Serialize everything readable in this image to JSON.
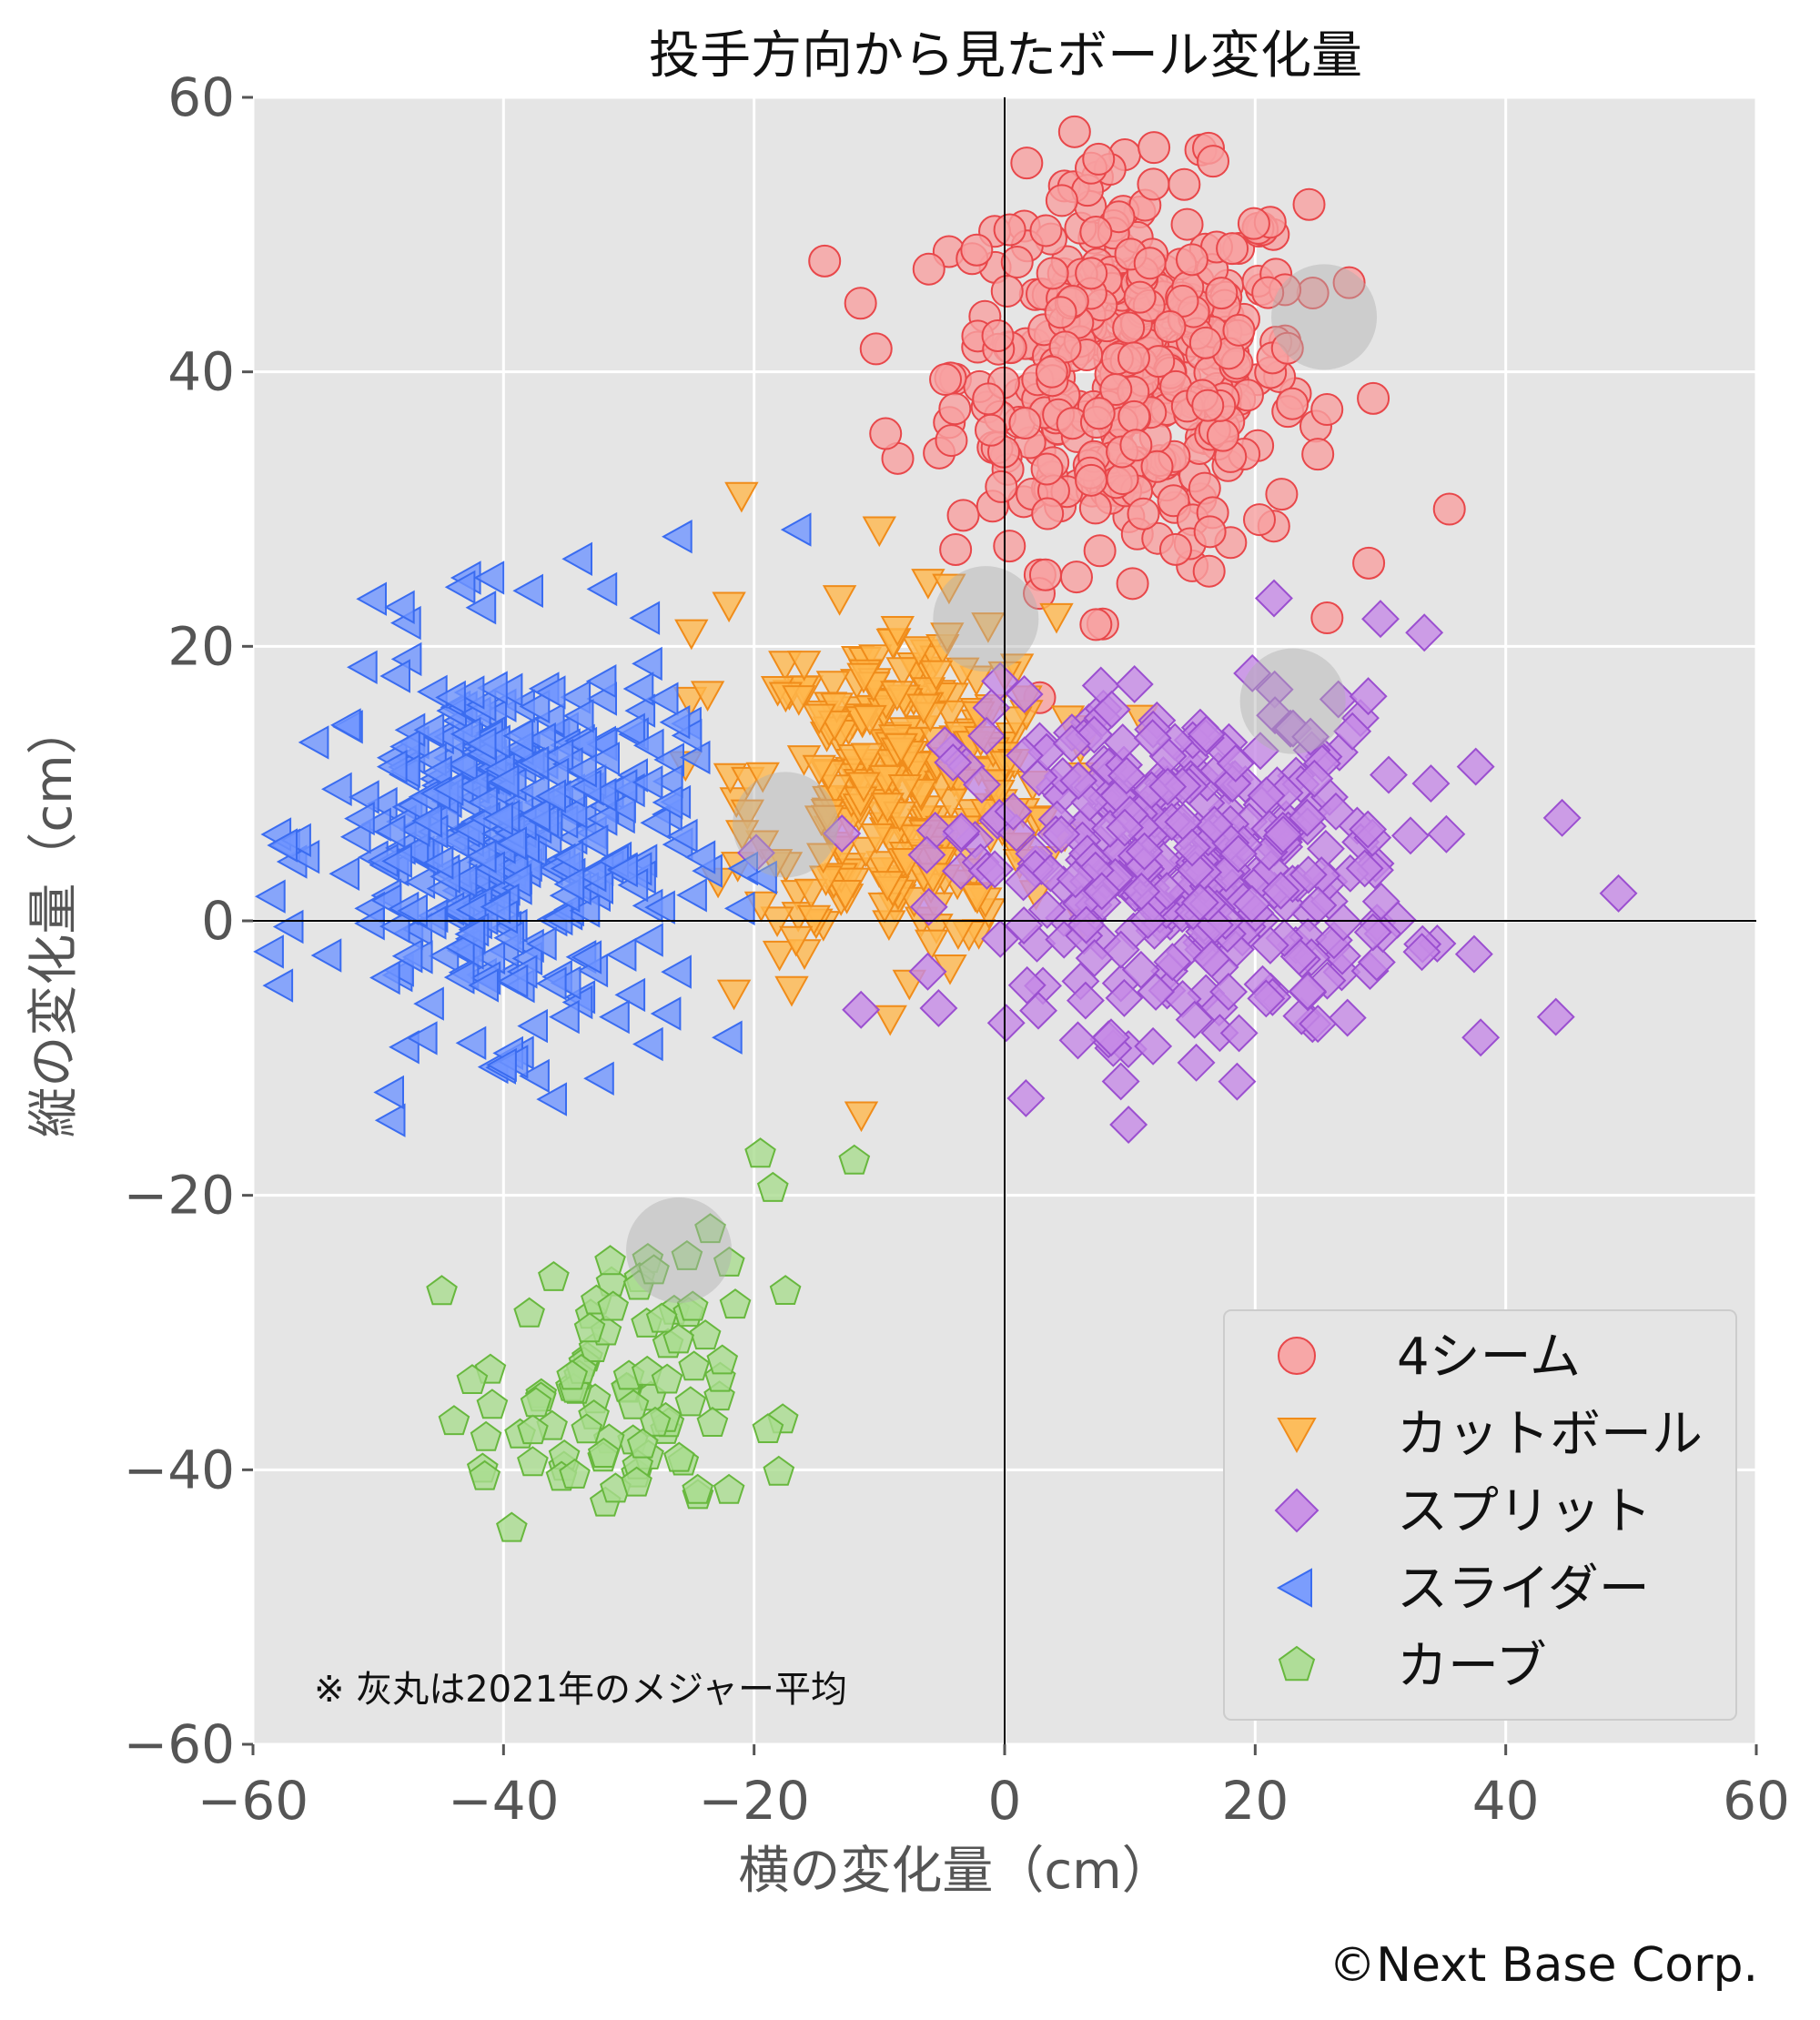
{
  "chart_data": {
    "type": "scatter",
    "title": "投手方向から見たボール変化量",
    "xlabel": "横の変化量（cm）",
    "ylabel": "縦の変化量（cm）",
    "xlim": [
      -60,
      60
    ],
    "ylim": [
      -60,
      60
    ],
    "xticks": [
      "−60",
      "−40",
      "−20",
      "0",
      "20",
      "40",
      "60"
    ],
    "yticks": [
      "60",
      "40",
      "20",
      "0",
      "−20",
      "−40",
      "−60"
    ],
    "grid": true,
    "legend_position": "bottom-right",
    "note": "※ 灰丸は2021年のメジャー平均",
    "credit": "©Next Base Corp.",
    "series": [
      {
        "name": "4シーム",
        "marker": "circle",
        "color": "#f8a0a0",
        "edge": "#e8474a",
        "center": [
          10,
          40
        ],
        "spread": [
          7,
          7
        ],
        "count": 420,
        "extra": [
          [
            -11.5,
            45
          ],
          [
            35.5,
            30
          ],
          [
            7.5,
            55.5
          ],
          [
            27.5,
            46.5
          ],
          [
            25,
            34
          ],
          [
            -9.5,
            35.5
          ],
          [
            1,
            48
          ]
        ]
      },
      {
        "name": "カットボール",
        "marker": "triangle-down",
        "color": "#ffb84d",
        "edge": "#f08c1a",
        "center": [
          -8,
          10
        ],
        "spread": [
          6,
          6
        ],
        "count": 320,
        "extra": [
          [
            -21,
            31
          ],
          [
            -10,
            28.5
          ],
          [
            -22,
            23
          ],
          [
            -25,
            21
          ],
          [
            -17,
            -5
          ],
          [
            2.5,
            2
          ]
        ]
      },
      {
        "name": "スプリット",
        "marker": "diamond",
        "color": "#c68ae6",
        "edge": "#9b4fd0",
        "center": [
          14,
          4
        ],
        "spread": [
          9,
          6
        ],
        "count": 380,
        "extra": [
          [
            49,
            2
          ],
          [
            44.5,
            7.5
          ],
          [
            30,
            22
          ],
          [
            33.5,
            21
          ],
          [
            21.5,
            23.5
          ],
          [
            44,
            -7
          ],
          [
            38,
            -8.5
          ],
          [
            25,
            -7.5
          ],
          [
            8.5,
            -8.5
          ]
        ]
      },
      {
        "name": "スライダー",
        "marker": "triangle-left",
        "color": "#6f95ff",
        "edge": "#3a6cf0",
        "center": [
          -40,
          6
        ],
        "spread": [
          7,
          7
        ],
        "count": 380,
        "extra": [
          [
            -41,
            25
          ],
          [
            -26,
            28
          ],
          [
            -16.5,
            28.5
          ],
          [
            -49,
            -12.5
          ],
          [
            -36,
            -13
          ],
          [
            -22,
            -8.5
          ],
          [
            -31,
            -7
          ],
          [
            -40,
            -10.5
          ],
          [
            -35,
            -7
          ],
          [
            -57.5,
            5.5
          ],
          [
            -55,
            13
          ]
        ]
      },
      {
        "name": "カーブ",
        "marker": "pentagon",
        "color": "#a9dc8f",
        "edge": "#68b83e",
        "center": [
          -32,
          -35
        ],
        "spread": [
          5,
          5
        ],
        "count": 85,
        "extra": [
          [
            -19.5,
            -17
          ],
          [
            -12,
            -17.5
          ],
          [
            -18.5,
            -19.5
          ],
          [
            -23.5,
            -22.5
          ],
          [
            -28,
            -25.5
          ],
          [
            -36,
            -26
          ],
          [
            -17.5,
            -27
          ],
          [
            -21.5,
            -28
          ],
          [
            -42.5,
            -33.5
          ],
          [
            -41.5,
            -40.5
          ],
          [
            -22,
            -41.5
          ],
          [
            -24.5,
            -41.5
          ]
        ]
      }
    ],
    "averages": [
      {
        "x": 25.5,
        "y": 44
      },
      {
        "x": 23,
        "y": 16
      },
      {
        "x": -17.5,
        "y": 7
      },
      {
        "x": -26,
        "y": -24
      },
      {
        "x": -1.5,
        "y": 22
      }
    ]
  }
}
